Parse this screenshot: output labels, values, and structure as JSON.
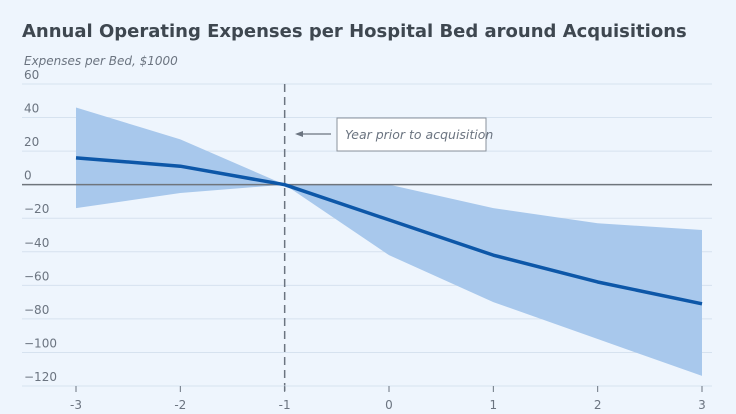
{
  "chart_data": {
    "type": "line",
    "title": "Annual Operating Expenses per Hospital Bed around Acquisitions",
    "ylabel": "Expenses per Bed, $1000",
    "xlabel": "",
    "x": [
      -3,
      -2,
      -1,
      0,
      1,
      2,
      3
    ],
    "x_tick_labels": [
      "-3",
      "-2",
      "-1",
      "0",
      "1",
      "2",
      "3"
    ],
    "y_tick_labels": [
      "60",
      "40",
      "20",
      "0",
      "−20",
      "−40",
      "−60",
      "−80",
      "−100",
      "−120"
    ],
    "y_ticks": [
      60,
      40,
      20,
      0,
      -20,
      -40,
      -60,
      -80,
      -100,
      -120
    ],
    "ylim": [
      -120,
      60
    ],
    "xlim": [
      -3,
      3
    ],
    "grid": true,
    "series": [
      {
        "values": [
          16,
          11,
          0,
          -21,
          -42,
          -58,
          -71
        ],
        "color": "#0d57a8"
      }
    ],
    "confidence_band": {
      "upper": [
        46,
        27,
        0,
        0,
        -14,
        -23,
        -27
      ],
      "lower": [
        -14,
        -5,
        0,
        -42,
        -70,
        -92,
        -114
      ],
      "color": "#a8c8ec"
    },
    "reference_line": {
      "x": -1,
      "style": "dashed"
    },
    "annotation": {
      "text": "Year prior to acquisition",
      "x": -1
    }
  }
}
